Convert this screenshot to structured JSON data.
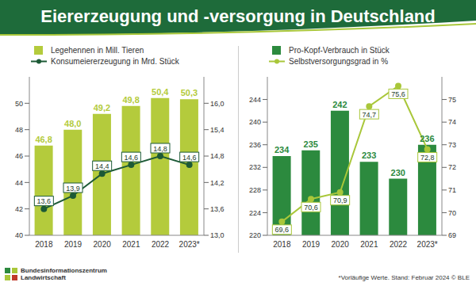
{
  "title": "Eiererzeugung und -versorgung in Deutschland",
  "footnote": "*Vorläufige Werte. Stand: Februar 2024 © BLE",
  "source": [
    "Bundesinformationszentrum",
    "Landwirtschaft"
  ],
  "chart_data": [
    {
      "type": "bar",
      "categories": [
        "2018",
        "2019",
        "2020",
        "2021",
        "2022",
        "2023*"
      ],
      "series": [
        {
          "name": "Legehennen in Mill. Tieren",
          "type": "bar",
          "color": "#b4cb3c",
          "values": [
            46.8,
            48.0,
            49.2,
            49.8,
            50.4,
            50.3
          ],
          "value_labels": [
            "46,8",
            "48,0",
            "49,2",
            "49,8",
            "50,4",
            "50,3"
          ]
        },
        {
          "name": "Konsumeiererzeugung in Mrd. Stück",
          "type": "line",
          "axis": "y2",
          "color": "#1d5a36",
          "marker": "circle",
          "values": [
            13.6,
            13.9,
            14.4,
            14.6,
            14.8,
            14.6
          ],
          "value_labels": [
            "13,6",
            "13,9",
            "14,4",
            "14,6",
            "14,8",
            "14,6"
          ]
        }
      ],
      "ylim": [
        40,
        52
      ],
      "yticks": [
        40,
        42,
        44,
        46,
        48,
        50
      ],
      "y2lim": [
        13,
        16.6
      ],
      "y2ticks": [
        {
          "value": 13,
          "label": "13,0"
        },
        {
          "value": 13.6,
          "label": "13,6"
        },
        {
          "value": 14.2,
          "label": "14,2"
        },
        {
          "value": 14.8,
          "label": "14,8"
        },
        {
          "value": 15.4,
          "label": "15,4"
        },
        {
          "value": 16,
          "label": "16,0"
        }
      ],
      "data_labels": true,
      "legend": "top",
      "grid": false
    },
    {
      "type": "bar",
      "categories": [
        "2018",
        "2019",
        "2020",
        "2021",
        "2022",
        "2023*"
      ],
      "series": [
        {
          "name": "Pro-Kopf-Verbrauch in Stück",
          "type": "bar",
          "color": "#2c8a3e",
          "values": [
            234,
            235,
            242,
            233,
            230,
            236
          ],
          "value_labels": [
            "234",
            "235",
            "242",
            "233",
            "230",
            "236"
          ]
        },
        {
          "name": "Selbstversorgungsgrad in %",
          "type": "line",
          "axis": "y2",
          "color": "#a9c73a",
          "marker": "circle",
          "values": [
            69.6,
            70.6,
            70.9,
            74.7,
            75.6,
            72.8
          ],
          "value_labels": [
            "69,6",
            "70,6",
            "70,9",
            "74,7",
            "75,6",
            "72,8"
          ]
        }
      ],
      "ylim": [
        220,
        248
      ],
      "yticks": [
        220,
        224,
        228,
        232,
        236,
        240,
        244
      ],
      "y2lim": [
        69,
        76
      ],
      "y2ticks": [
        69,
        70,
        71,
        72,
        73,
        74,
        75
      ],
      "data_labels": true,
      "legend": "top",
      "grid": false
    }
  ]
}
